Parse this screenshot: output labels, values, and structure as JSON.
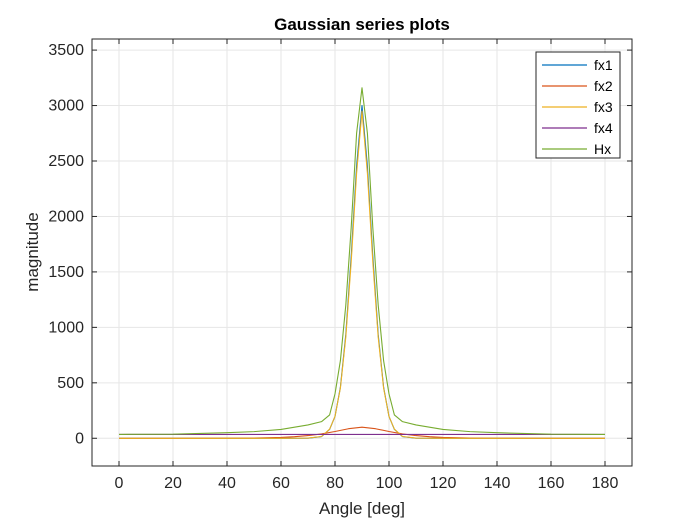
{
  "chart_data": {
    "type": "line",
    "title": "Gaussian series plots",
    "xlabel": "Angle [deg]",
    "ylabel": "magnitude",
    "xlim": [
      -10,
      190
    ],
    "ylim": [
      -250,
      3600
    ],
    "xticks": [
      0,
      20,
      40,
      60,
      80,
      100,
      120,
      140,
      160,
      180
    ],
    "yticks": [
      0,
      500,
      1000,
      1500,
      2000,
      2500,
      3000,
      3500
    ],
    "grid": true,
    "legend_position": "top-right",
    "series": [
      {
        "name": "fx1",
        "color": "#0072bd",
        "x": [
          0,
          60,
          70,
          75,
          78,
          80,
          82,
          84,
          86,
          88,
          90,
          92,
          94,
          96,
          98,
          100,
          102,
          105,
          110,
          120,
          180
        ],
        "y": [
          0,
          0,
          1,
          15,
          80,
          197,
          460,
          935,
          1641,
          2451,
          3000,
          2451,
          1641,
          935,
          460,
          197,
          80,
          15,
          1,
          0,
          0
        ]
      },
      {
        "name": "fx2",
        "color": "#d95319",
        "x": [
          0,
          20,
          40,
          50,
          60,
          65,
          70,
          75,
          80,
          85,
          90,
          95,
          100,
          105,
          110,
          115,
          120,
          130,
          140,
          160,
          180
        ],
        "y": [
          0,
          0,
          1,
          2,
          8,
          14,
          24,
          39,
          61,
          86,
          100,
          86,
          61,
          39,
          24,
          14,
          8,
          2,
          1,
          0,
          0
        ]
      },
      {
        "name": "fx3",
        "color": "#edb120",
        "x": [
          0,
          40,
          60,
          70,
          75,
          78,
          80,
          82,
          84,
          86,
          88,
          90,
          92,
          94,
          96,
          98,
          100,
          102,
          105,
          110,
          120,
          140,
          180
        ],
        "y": [
          0,
          0,
          0,
          2,
          16,
          82,
          197,
          453,
          911,
          1591,
          2390,
          2950,
          2390,
          1591,
          911,
          453,
          197,
          82,
          16,
          2,
          0,
          0,
          0
        ]
      },
      {
        "name": "fx4",
        "color": "#7e2f8e",
        "x": [
          0,
          180
        ],
        "y": [
          35,
          35
        ]
      },
      {
        "name": "Hx",
        "color": "#77ac30",
        "x": [
          0,
          20,
          40,
          50,
          60,
          65,
          70,
          75,
          78,
          80,
          82,
          84,
          86,
          88,
          90,
          92,
          94,
          96,
          98,
          100,
          102,
          105,
          110,
          115,
          120,
          130,
          140,
          160,
          180
        ],
        "y": [
          35,
          37,
          50,
          60,
          80,
          100,
          120,
          150,
          210,
          400,
          700,
          1200,
          1900,
          2750,
          3160,
          2750,
          1900,
          1200,
          700,
          400,
          210,
          150,
          120,
          100,
          80,
          60,
          50,
          37,
          35
        ]
      }
    ]
  }
}
